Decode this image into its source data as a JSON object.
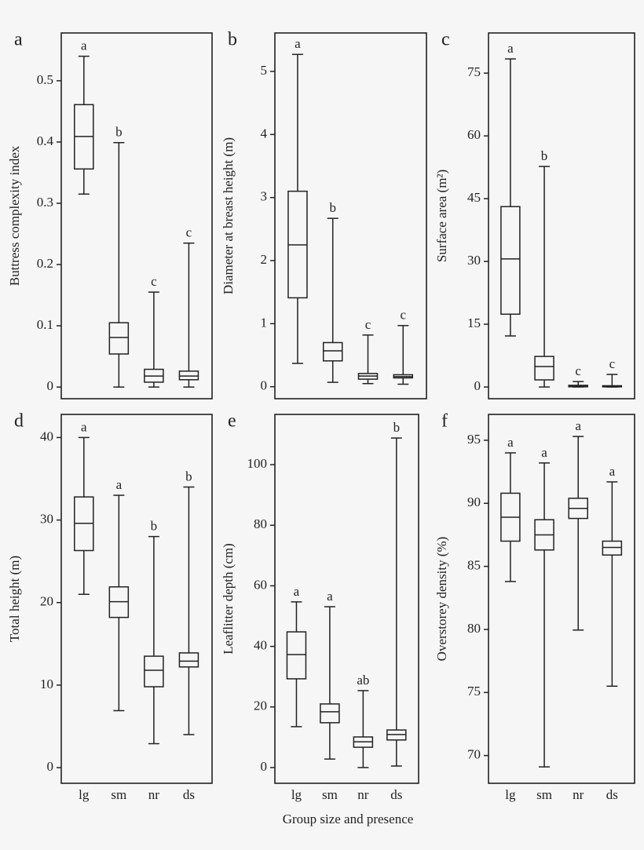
{
  "chart_data": [
    {
      "type": "box",
      "label": "a",
      "ylabel": "Buttress complexity index",
      "ylim": [
        -0.019,
        0.578
      ],
      "yticks": [
        0,
        0.1,
        0.2,
        0.3,
        0.4,
        0.5
      ],
      "boxes": [
        {
          "min": 0.315,
          "q1": 0.356,
          "median": 0.409,
          "q3": 0.461,
          "max": 0.54,
          "letter": "a"
        },
        {
          "min": 0,
          "q1": 0.054,
          "median": 0.081,
          "q3": 0.105,
          "max": 0.399,
          "letter": "b"
        },
        {
          "min": 0,
          "q1": 0.008,
          "median": 0.018,
          "q3": 0.029,
          "max": 0.155,
          "letter": "c"
        },
        {
          "min": 0,
          "q1": 0.012,
          "median": 0.018,
          "q3": 0.026,
          "max": 0.235,
          "letter": "c"
        }
      ]
    },
    {
      "type": "box",
      "label": "b",
      "ylabel": "Diameter at breast height (m)",
      "ylim": [
        -0.19,
        5.61
      ],
      "yticks": [
        0,
        1,
        2,
        3,
        4,
        5
      ],
      "boxes": [
        {
          "min": 0.37,
          "q1": 1.41,
          "median": 2.25,
          "q3": 3.1,
          "max": 5.27,
          "letter": "a"
        },
        {
          "min": 0.07,
          "q1": 0.41,
          "median": 0.57,
          "q3": 0.7,
          "max": 2.67,
          "letter": "b"
        },
        {
          "min": 0.05,
          "q1": 0.12,
          "median": 0.17,
          "q3": 0.21,
          "max": 0.82,
          "letter": "c"
        },
        {
          "min": 0.04,
          "q1": 0.14,
          "median": 0.16,
          "q3": 0.19,
          "max": 0.97,
          "letter": "c"
        }
      ]
    },
    {
      "type": "box",
      "label": "c",
      "ylabel": "Surface area (m²)",
      "ylim": [
        -2.8,
        84.6
      ],
      "yticks": [
        0,
        15,
        30,
        45,
        60,
        75
      ],
      "boxes": [
        {
          "min": 12.2,
          "q1": 17.4,
          "median": 30.6,
          "q3": 43.1,
          "max": 78.4,
          "letter": "a"
        },
        {
          "min": 0,
          "q1": 1.7,
          "median": 4.9,
          "q3": 7.3,
          "max": 52.7,
          "letter": "b"
        },
        {
          "min": 0,
          "q1": 0.05,
          "median": 0.2,
          "q3": 0.4,
          "max": 1.3,
          "letter": "c"
        },
        {
          "min": 0,
          "q1": 0.03,
          "median": 0.1,
          "q3": 0.3,
          "max": 3.0,
          "letter": "c"
        }
      ]
    },
    {
      "type": "box",
      "label": "d",
      "ylabel": "Total height (m)",
      "ylim": [
        -1.9,
        42.8
      ],
      "yticks": [
        0,
        10,
        20,
        30,
        40
      ],
      "categories": [
        "lg",
        "sm",
        "nr",
        "ds"
      ],
      "boxes": [
        {
          "min": 21,
          "q1": 26.3,
          "median": 29.6,
          "q3": 32.8,
          "max": 40,
          "letter": "a"
        },
        {
          "min": 6.9,
          "q1": 18.2,
          "median": 20.1,
          "q3": 21.9,
          "max": 33,
          "letter": "a"
        },
        {
          "min": 2.9,
          "q1": 9.8,
          "median": 11.8,
          "q3": 13.5,
          "max": 28,
          "letter": "b"
        },
        {
          "min": 4,
          "q1": 12.2,
          "median": 12.9,
          "q3": 13.9,
          "max": 34,
          "letter": "b"
        }
      ]
    },
    {
      "type": "box",
      "label": "e",
      "ylabel": "Leaflitter depth (cm)",
      "ylim": [
        -5.2,
        116.6
      ],
      "yticks": [
        0,
        20,
        40,
        60,
        80,
        100
      ],
      "categories": [
        "lg",
        "sm",
        "nr",
        "ds"
      ],
      "boxes": [
        {
          "min": 13.5,
          "q1": 29.3,
          "median": 37.3,
          "q3": 44.8,
          "max": 54.7,
          "letter": "a"
        },
        {
          "min": 2.8,
          "q1": 14.8,
          "median": 18.4,
          "q3": 21,
          "max": 53.1,
          "letter": "a"
        },
        {
          "min": 0,
          "q1": 6.7,
          "median": 8.5,
          "q3": 10.1,
          "max": 25.4,
          "letter": "ab"
        },
        {
          "min": 0.5,
          "q1": 9.1,
          "median": 10.9,
          "q3": 12.4,
          "max": 108.8,
          "letter": "b"
        }
      ]
    },
    {
      "type": "box",
      "label": "f",
      "ylabel": "Overstorey density (%)",
      "ylim": [
        67.8,
        97.05
      ],
      "yticks": [
        70,
        75,
        80,
        85,
        90,
        95
      ],
      "categories": [
        "lg",
        "sm",
        "nr",
        "ds"
      ],
      "boxes": [
        {
          "min": 83.8,
          "q1": 87.0,
          "median": 88.9,
          "q3": 90.8,
          "max": 94.0,
          "letter": "a"
        },
        {
          "min": 69.1,
          "q1": 86.3,
          "median": 87.5,
          "q3": 88.7,
          "max": 93.2,
          "letter": "a"
        },
        {
          "min": 79.95,
          "q1": 88.8,
          "median": 89.6,
          "q3": 90.4,
          "max": 95.3,
          "letter": "a"
        },
        {
          "min": 75.5,
          "q1": 85.9,
          "median": 86.5,
          "q3": 87.0,
          "max": 91.7,
          "letter": "a"
        }
      ]
    }
  ],
  "xlabel": "Group size and presence"
}
